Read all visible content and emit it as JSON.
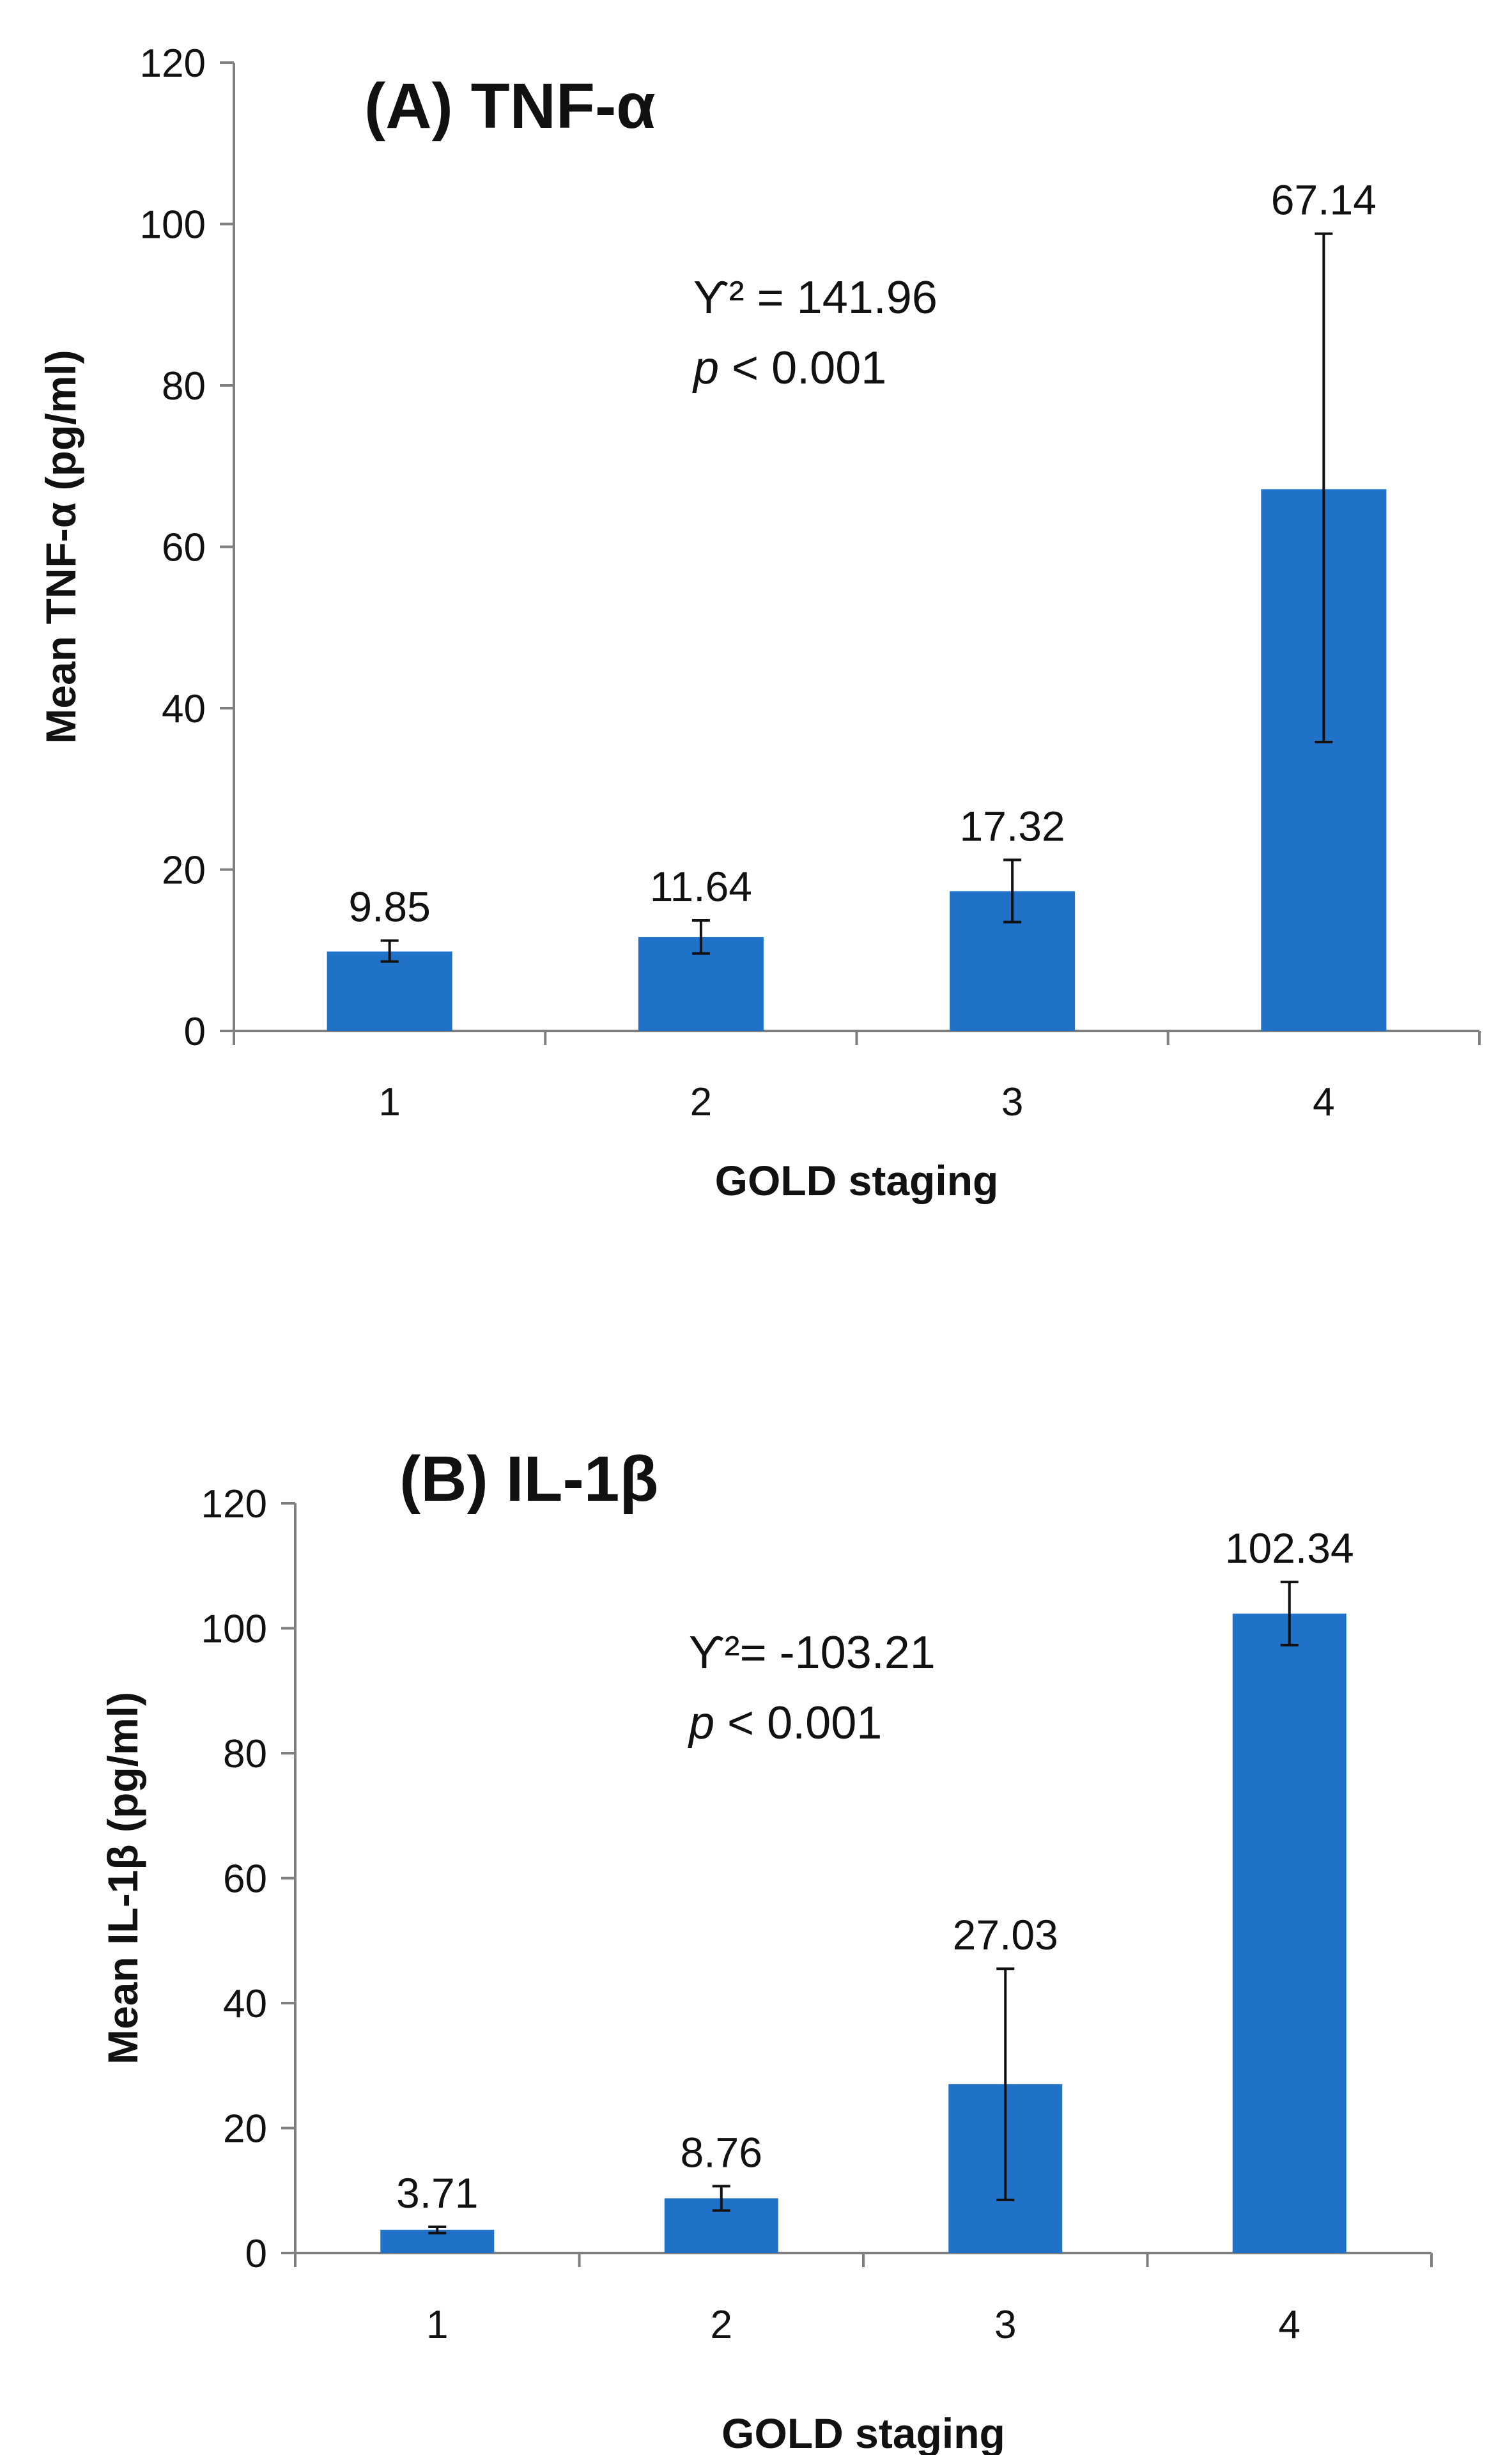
{
  "chart_data": [
    {
      "type": "bar",
      "title": "(A) TNF-α",
      "xlabel": "GOLD staging",
      "ylabel": "Mean TNF-α (pg/ml)",
      "categories": [
        "1",
        "2",
        "3",
        "4"
      ],
      "values": [
        9.85,
        11.64,
        17.32,
        67.14
      ],
      "data_labels": [
        "9.85",
        "11.64",
        "17.32",
        "67.14"
      ],
      "error_bars": [
        {
          "low": 8.6,
          "high": 11.2
        },
        {
          "low": 9.6,
          "high": 13.7
        },
        {
          "low": 13.5,
          "high": 21.2
        },
        {
          "low": 35.8,
          "high": 98.8
        }
      ],
      "ylim": [
        0,
        120
      ],
      "yticks": [
        "0",
        "20",
        "40",
        "60",
        "80",
        "100",
        "120"
      ],
      "annotations": {
        "stat": "Ƴ² = 141.96",
        "p_italic": "p",
        "p_rest": " < 0.001"
      },
      "bar_color": "#1f72c8",
      "grid": false
    },
    {
      "type": "bar",
      "title": "(B) IL-1β",
      "xlabel": "GOLD staging",
      "ylabel": "Mean IL-1β (pg/ml)",
      "categories": [
        "1",
        "2",
        "3",
        "4"
      ],
      "values": [
        3.71,
        8.76,
        27.03,
        102.34
      ],
      "data_labels": [
        "3.71",
        "8.76",
        "27.03",
        "102.34"
      ],
      "error_bars": [
        {
          "low": 3.2,
          "high": 4.2
        },
        {
          "low": 6.8,
          "high": 10.7
        },
        {
          "low": 8.5,
          "high": 45.5
        },
        {
          "low": 97.3,
          "high": 107.4
        }
      ],
      "ylim": [
        0,
        120
      ],
      "yticks": [
        "0",
        "20",
        "40",
        "60",
        "80",
        "100",
        "120"
      ],
      "annotations": {
        "stat": "Ƴ²= -103.21",
        "p_italic": "p",
        "p_rest": " < 0.001"
      },
      "bar_color": "#1f72c8",
      "grid": false
    }
  ]
}
